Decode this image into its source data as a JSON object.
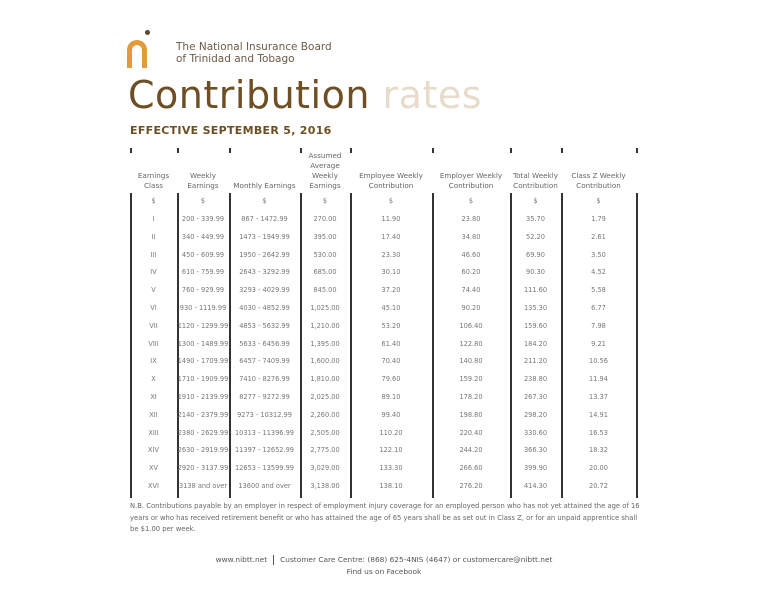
{
  "header": {
    "logo_icon": "nib-logo-icon",
    "org_line1": "The National Insurance Board",
    "org_line2": "of Trinidad and Tobago",
    "title_part1": "Contribution",
    "title_part2": "rates",
    "effective": "EFFECTIVE SEPTEMBER 5, 2016",
    "colors": {
      "brand_brown": "#6e4f25",
      "brand_light": "#e7dccb",
      "logo_orange": "#e39a3b"
    }
  },
  "table": {
    "columns": [
      "Earnings Class",
      "Weekly Earnings",
      "Monthly Earnings",
      "Assumed Average Weekly Earnings",
      "Employee Weekly Contribution",
      "Employer Weekly Contribution",
      "Total Weekly Contribution",
      "Class Z Weekly Contribution"
    ],
    "units": [
      "$",
      "$",
      "$",
      "$",
      "$",
      "$",
      "$",
      "$"
    ],
    "rows": [
      [
        "I",
        "200 - 339.99",
        "867 - 1472.99",
        "270.00",
        "11.90",
        "23.80",
        "35.70",
        "1.79"
      ],
      [
        "II",
        "340 - 449.99",
        "1473 - 1949.99",
        "395.00",
        "17.40",
        "34.80",
        "52.20",
        "2.61"
      ],
      [
        "III",
        "450 - 609.99",
        "1950 - 2642.99",
        "530.00",
        "23.30",
        "46.60",
        "69.90",
        "3.50"
      ],
      [
        "IV",
        "610 - 759.99",
        "2643 - 3292.99",
        "685.00",
        "30.10",
        "60.20",
        "90.30",
        "4.52"
      ],
      [
        "V",
        "760 - 929.99",
        "3293 - 4029.99",
        "845.00",
        "37.20",
        "74.40",
        "111.60",
        "5.58"
      ],
      [
        "VI",
        "930 - 1119.99",
        "4030 - 4852.99",
        "1,025.00",
        "45.10",
        "90.20",
        "135.30",
        "6.77"
      ],
      [
        "VII",
        "1120 - 1299.99",
        "4853 - 5632.99",
        "1,210.00",
        "53.20",
        "106.40",
        "159.60",
        "7.98"
      ],
      [
        "VIII",
        "1300 - 1489.99",
        "5633 - 6456.99",
        "1,395.00",
        "61.40",
        "122.80",
        "184.20",
        "9.21"
      ],
      [
        "IX",
        "1490 - 1709.99",
        "6457 - 7409.99",
        "1,600.00",
        "70.40",
        "140.80",
        "211.20",
        "10.56"
      ],
      [
        "X",
        "1710 - 1909.99",
        "7410 - 8276.99",
        "1,810.00",
        "79.60",
        "159.20",
        "238.80",
        "11.94"
      ],
      [
        "XI",
        "1910 - 2139.99",
        "8277 - 9272.99",
        "2,025.00",
        "89.10",
        "178.20",
        "267.30",
        "13.37"
      ],
      [
        "XII",
        "2140 - 2379.99",
        "9273 - 10312.99",
        "2,260.00",
        "99.40",
        "198.80",
        "298.20",
        "14.91"
      ],
      [
        "XIII",
        "2380 - 2629.99",
        "10313 - 11396.99",
        "2,505.00",
        "110.20",
        "220.40",
        "330.60",
        "16.53"
      ],
      [
        "XIV",
        "2630 - 2919.99",
        "11397 - 12652.99",
        "2,775.00",
        "122.10",
        "244.20",
        "366.30",
        "18.32"
      ],
      [
        "XV",
        "2920 - 3137.99",
        "12653 - 13599.99",
        "3,029.00",
        "133.30",
        "266.60",
        "399.90",
        "20.00"
      ],
      [
        "XVI",
        "3138 and over",
        "13600 and over",
        "3,138.00",
        "138.10",
        "276.20",
        "414.30",
        "20.72"
      ]
    ]
  },
  "note": "N.B. Contributions payable by an employer in respect of employment injury coverage for an employed person who has not yet attained the age of 16 years or who has received retirement benefit or who has attained the age of 65 years shall be as set out in Class Z, or for an unpaid apprentice shall be $1.00 per week.",
  "footer": {
    "website": "www.nibtt.net",
    "contact": "Customer Care Centre: (868) 625-4NIS (4647) or customercare@nibtt.net",
    "social": "Find us on Facebook"
  }
}
